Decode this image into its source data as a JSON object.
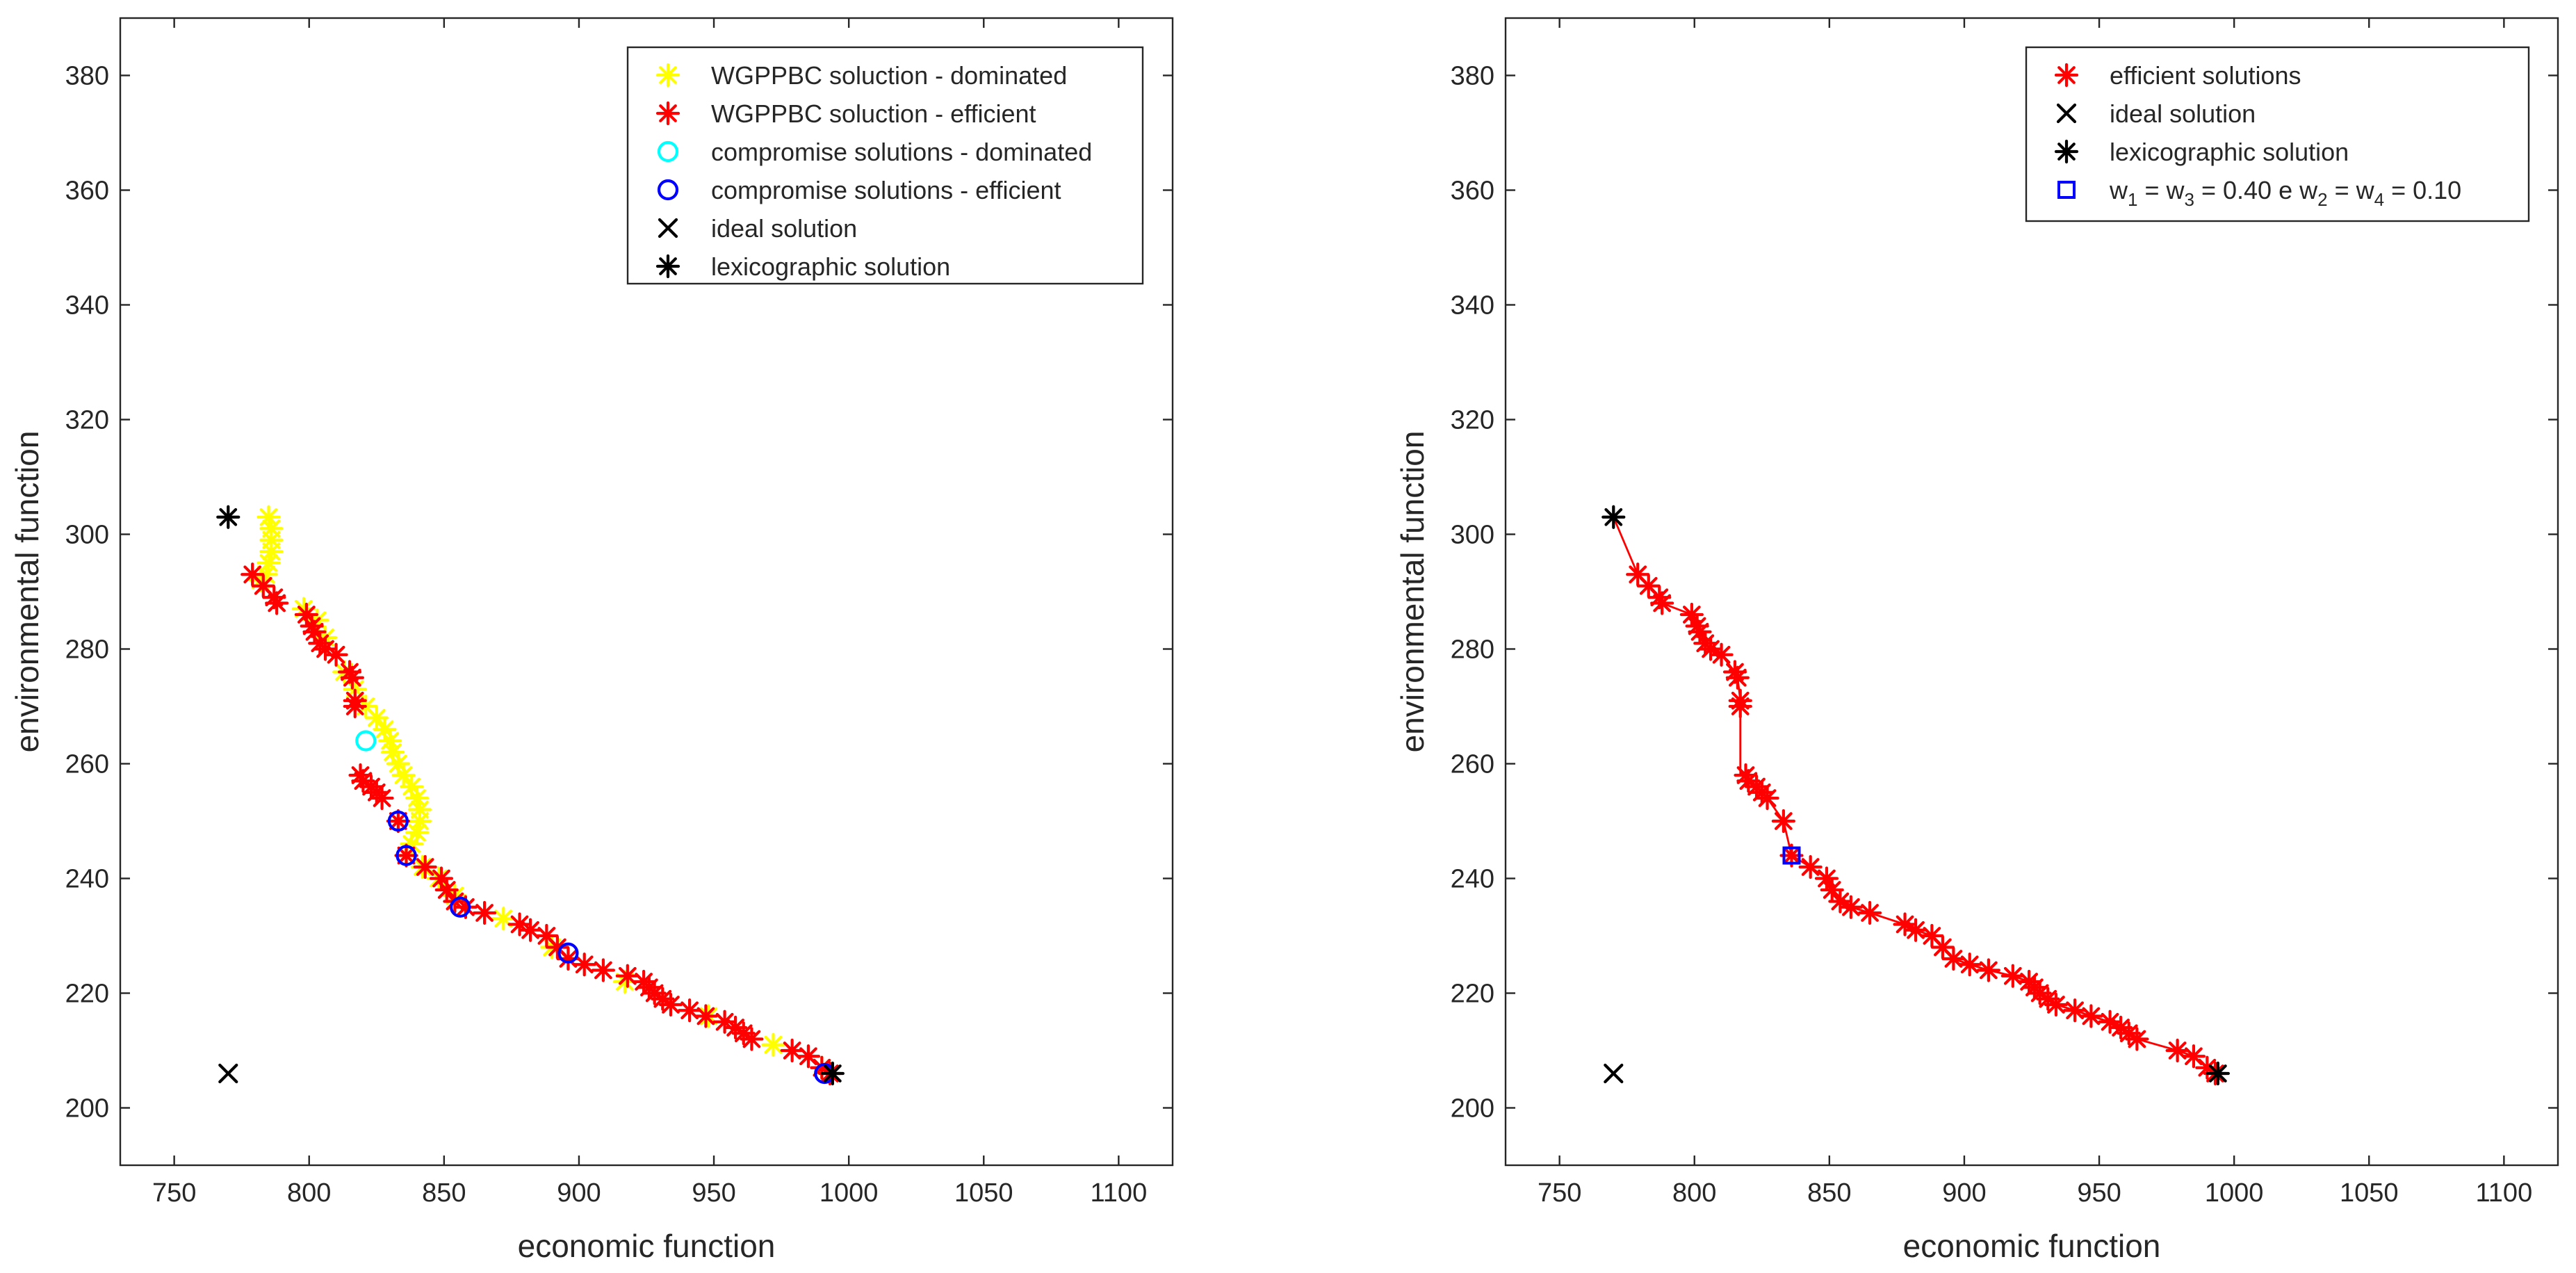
{
  "chart_data": [
    {
      "type": "scatter",
      "xlabel": "economic function",
      "ylabel": "environmental function",
      "xlim": [
        730,
        1120
      ],
      "ylim": [
        190,
        390
      ],
      "xticks": [
        750,
        800,
        850,
        900,
        950,
        1000,
        1050,
        1100
      ],
      "yticks": [
        200,
        220,
        240,
        260,
        280,
        300,
        320,
        340,
        360,
        380
      ],
      "xtick_labels": [
        "750",
        "800",
        "850",
        "900",
        "950",
        "1000",
        "1050",
        "1100"
      ],
      "ytick_labels": [
        "200",
        "220",
        "240",
        "260",
        "280",
        "300",
        "320",
        "340",
        "360",
        "380"
      ],
      "grid": false,
      "legend_position": "top-right",
      "series": [
        {
          "name": "WGPPBC soluction - dominated",
          "marker": "asterisk",
          "color": "#ffff00",
          "points": [
            [
              785,
              303
            ],
            [
              786,
              301
            ],
            [
              786,
              299
            ],
            [
              786,
              297
            ],
            [
              785,
              295
            ],
            [
              784,
              293
            ],
            [
              782,
              292
            ],
            [
              798,
              287
            ],
            [
              803,
              285
            ],
            [
              806,
              282
            ],
            [
              810,
              279
            ],
            [
              813,
              276
            ],
            [
              817,
              273
            ],
            [
              821,
              270
            ],
            [
              825,
              268
            ],
            [
              828,
              266
            ],
            [
              830,
              264
            ],
            [
              831,
              262
            ],
            [
              833,
              260
            ],
            [
              835,
              258
            ],
            [
              838,
              256
            ],
            [
              840,
              254
            ],
            [
              841,
              252
            ],
            [
              841,
              250
            ],
            [
              840,
              248
            ],
            [
              838,
              246
            ],
            [
              836,
              244
            ],
            [
              842,
              242
            ],
            [
              848,
              240
            ],
            [
              854,
              237
            ],
            [
              872,
              233
            ],
            [
              890,
              228
            ],
            [
              917,
              222
            ],
            [
              948,
              216
            ],
            [
              972,
              211
            ],
            [
              990,
              207
            ]
          ]
        },
        {
          "name": "WGPPBC soluction - efficient",
          "marker": "asterisk",
          "color": "#ff0000",
          "points": [
            [
              779,
              293
            ],
            [
              783,
              291
            ],
            [
              787,
              289
            ],
            [
              788,
              288
            ],
            [
              799,
              286
            ],
            [
              801,
              284
            ],
            [
              802,
              283
            ],
            [
              804,
              281
            ],
            [
              806,
              280
            ],
            [
              810,
              279
            ],
            [
              815,
              276
            ],
            [
              816,
              275
            ],
            [
              817,
              271
            ],
            [
              817,
              270
            ],
            [
              819,
              258
            ],
            [
              820,
              257
            ],
            [
              823,
              256
            ],
            [
              825,
              255
            ],
            [
              827,
              254
            ],
            [
              833,
              250
            ],
            [
              836,
              244
            ],
            [
              843,
              242
            ],
            [
              849,
              240
            ],
            [
              851,
              238
            ],
            [
              854,
              236
            ],
            [
              858,
              235
            ],
            [
              865,
              234
            ],
            [
              878,
              232
            ],
            [
              882,
              231
            ],
            [
              888,
              230
            ],
            [
              892,
              228
            ],
            [
              896,
              226
            ],
            [
              902,
              225
            ],
            [
              909,
              224
            ],
            [
              918,
              223
            ],
            [
              924,
              222
            ],
            [
              926,
              221
            ],
            [
              928,
              220
            ],
            [
              931,
              219
            ],
            [
              934,
              218
            ],
            [
              941,
              217
            ],
            [
              947,
              216
            ],
            [
              954,
              215
            ],
            [
              958,
              214
            ],
            [
              961,
              213
            ],
            [
              964,
              212
            ],
            [
              979,
              210
            ],
            [
              985,
              209
            ],
            [
              990,
              207
            ],
            [
              993,
              206
            ]
          ]
        },
        {
          "name": "compromise solutions - dominated",
          "marker": "circle",
          "color": "#00ffff",
          "points": [
            [
              821,
              264
            ]
          ]
        },
        {
          "name": "compromise solutions - efficient",
          "marker": "circle",
          "color": "#0000ff",
          "points": [
            [
              833,
              250
            ],
            [
              836,
              244
            ],
            [
              856,
              235
            ],
            [
              896,
              227
            ],
            [
              991,
              206
            ]
          ]
        },
        {
          "name": "ideal solution",
          "marker": "x",
          "color": "#000000",
          "points": [
            [
              770,
              206
            ]
          ]
        },
        {
          "name": "lexicographic solution",
          "marker": "asterisk",
          "color": "#000000",
          "points": [
            [
              770,
              303
            ],
            [
              994,
              206
            ]
          ]
        }
      ]
    },
    {
      "type": "line",
      "xlabel": "economic function",
      "ylabel": "environmental function",
      "xlim": [
        730,
        1120
      ],
      "ylim": [
        190,
        390
      ],
      "xticks": [
        750,
        800,
        850,
        900,
        950,
        1000,
        1050,
        1100
      ],
      "yticks": [
        200,
        220,
        240,
        260,
        280,
        300,
        320,
        340,
        360,
        380
      ],
      "xtick_labels": [
        "750",
        "800",
        "850",
        "900",
        "950",
        "1000",
        "1050",
        "1100"
      ],
      "ytick_labels": [
        "200",
        "220",
        "240",
        "260",
        "280",
        "300",
        "320",
        "340",
        "360",
        "380"
      ],
      "grid": false,
      "legend_position": "top-right",
      "frontier_line": {
        "color": "#ff0000",
        "points": [
          [
            770,
            303
          ],
          [
            779,
            293
          ],
          [
            783,
            291
          ],
          [
            787,
            289
          ],
          [
            788,
            288
          ],
          [
            799,
            286
          ],
          [
            801,
            284
          ],
          [
            802,
            283
          ],
          [
            804,
            281
          ],
          [
            806,
            280
          ],
          [
            810,
            279
          ],
          [
            815,
            276
          ],
          [
            816,
            275
          ],
          [
            817,
            271
          ],
          [
            817,
            270
          ],
          [
            817,
            258
          ],
          [
            819,
            258
          ],
          [
            820,
            257
          ],
          [
            823,
            256
          ],
          [
            825,
            255
          ],
          [
            827,
            254
          ],
          [
            833,
            250
          ],
          [
            836,
            244
          ],
          [
            843,
            242
          ],
          [
            849,
            240
          ],
          [
            851,
            238
          ],
          [
            854,
            236
          ],
          [
            858,
            235
          ],
          [
            865,
            234
          ],
          [
            878,
            232
          ],
          [
            882,
            231
          ],
          [
            888,
            230
          ],
          [
            892,
            228
          ],
          [
            896,
            226
          ],
          [
            902,
            225
          ],
          [
            909,
            224
          ],
          [
            918,
            223
          ],
          [
            924,
            222
          ],
          [
            926,
            221
          ],
          [
            928,
            220
          ],
          [
            931,
            219
          ],
          [
            934,
            218
          ],
          [
            941,
            217
          ],
          [
            947,
            216
          ],
          [
            954,
            215
          ],
          [
            958,
            214
          ],
          [
            961,
            213
          ],
          [
            964,
            212
          ],
          [
            979,
            210
          ],
          [
            985,
            209
          ],
          [
            990,
            207
          ],
          [
            993,
            206
          ]
        ]
      },
      "series": [
        {
          "name": "efficient solutions",
          "marker": "asterisk",
          "color": "#ff0000",
          "points": [
            [
              779,
              293
            ],
            [
              783,
              291
            ],
            [
              787,
              289
            ],
            [
              788,
              288
            ],
            [
              799,
              286
            ],
            [
              801,
              284
            ],
            [
              802,
              283
            ],
            [
              804,
              281
            ],
            [
              806,
              280
            ],
            [
              810,
              279
            ],
            [
              815,
              276
            ],
            [
              816,
              275
            ],
            [
              817,
              271
            ],
            [
              817,
              270
            ],
            [
              819,
              258
            ],
            [
              820,
              257
            ],
            [
              823,
              256
            ],
            [
              825,
              255
            ],
            [
              827,
              254
            ],
            [
              833,
              250
            ],
            [
              836,
              244
            ],
            [
              843,
              242
            ],
            [
              849,
              240
            ],
            [
              851,
              238
            ],
            [
              854,
              236
            ],
            [
              858,
              235
            ],
            [
              865,
              234
            ],
            [
              878,
              232
            ],
            [
              882,
              231
            ],
            [
              888,
              230
            ],
            [
              892,
              228
            ],
            [
              896,
              226
            ],
            [
              902,
              225
            ],
            [
              909,
              224
            ],
            [
              918,
              223
            ],
            [
              924,
              222
            ],
            [
              926,
              221
            ],
            [
              928,
              220
            ],
            [
              931,
              219
            ],
            [
              934,
              218
            ],
            [
              941,
              217
            ],
            [
              947,
              216
            ],
            [
              954,
              215
            ],
            [
              958,
              214
            ],
            [
              961,
              213
            ],
            [
              964,
              212
            ],
            [
              979,
              210
            ],
            [
              985,
              209
            ],
            [
              990,
              207
            ],
            [
              993,
              206
            ]
          ]
        },
        {
          "name": "ideal solution",
          "marker": "x",
          "color": "#000000",
          "points": [
            [
              770,
              206
            ]
          ]
        },
        {
          "name": "lexicographic solution",
          "marker": "asterisk",
          "color": "#000000",
          "points": [
            [
              770,
              303
            ],
            [
              994,
              206
            ]
          ]
        },
        {
          "name": "w1 = w3 = 0.40 e w2 = w4 = 0.10",
          "marker": "square",
          "color": "#0000ff",
          "points": [
            [
              836,
              244
            ]
          ],
          "label_parts": [
            "w",
            "1",
            " = w",
            "3",
            " = 0.40 e w",
            "2",
            " = w",
            "4",
            " = 0.10"
          ]
        }
      ]
    }
  ]
}
